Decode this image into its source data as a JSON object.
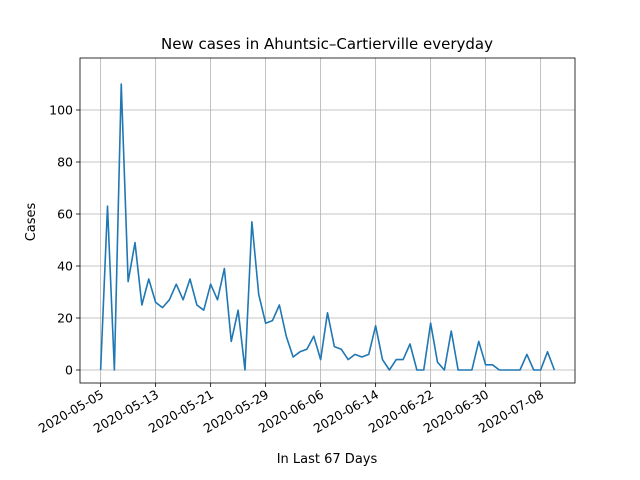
{
  "chart_data": {
    "type": "line",
    "title": "New cases in Ahuntsic–Cartierville everyday",
    "x_label": "In Last 67 Days",
    "y_label": "Cases",
    "x": [
      "2020-05-05",
      "2020-05-06",
      "2020-05-07",
      "2020-05-08",
      "2020-05-09",
      "2020-05-10",
      "2020-05-11",
      "2020-05-12",
      "2020-05-13",
      "2020-05-14",
      "2020-05-15",
      "2020-05-16",
      "2020-05-17",
      "2020-05-18",
      "2020-05-19",
      "2020-05-20",
      "2020-05-21",
      "2020-05-22",
      "2020-05-23",
      "2020-05-24",
      "2020-05-25",
      "2020-05-26",
      "2020-05-27",
      "2020-05-28",
      "2020-05-29",
      "2020-05-30",
      "2020-05-31",
      "2020-06-01",
      "2020-06-02",
      "2020-06-03",
      "2020-06-04",
      "2020-06-05",
      "2020-06-06",
      "2020-06-07",
      "2020-06-08",
      "2020-06-09",
      "2020-06-10",
      "2020-06-11",
      "2020-06-12",
      "2020-06-13",
      "2020-06-14",
      "2020-06-15",
      "2020-06-16",
      "2020-06-17",
      "2020-06-18",
      "2020-06-19",
      "2020-06-20",
      "2020-06-21",
      "2020-06-22",
      "2020-06-23",
      "2020-06-24",
      "2020-06-25",
      "2020-06-26",
      "2020-06-27",
      "2020-06-28",
      "2020-06-29",
      "2020-06-30",
      "2020-07-01",
      "2020-07-02",
      "2020-07-03",
      "2020-07-04",
      "2020-07-05",
      "2020-07-06",
      "2020-07-07",
      "2020-07-08",
      "2020-07-09",
      "2020-07-10"
    ],
    "values": [
      0,
      63,
      0,
      110,
      34,
      49,
      25,
      35,
      26,
      24,
      27,
      33,
      27,
      35,
      25,
      23,
      33,
      27,
      39,
      11,
      23,
      0,
      57,
      29,
      18,
      19,
      25,
      13,
      5,
      7,
      8,
      13,
      4,
      22,
      9,
      8,
      4,
      6,
      5,
      6,
      17,
      4,
      0,
      4,
      4,
      10,
      0,
      0,
      18,
      3,
      0,
      15,
      0,
      0,
      0,
      11,
      2,
      2,
      0,
      0,
      0,
      0,
      6,
      0,
      0,
      7,
      0
    ],
    "color": "#1f77b4",
    "xlim": [
      "2020-05-02",
      "2020-07-13"
    ],
    "xticks": [
      "2020-05-05",
      "2020-05-13",
      "2020-05-21",
      "2020-05-29",
      "2020-06-06",
      "2020-06-14",
      "2020-06-22",
      "2020-06-30",
      "2020-07-08"
    ],
    "ylim": [
      -5,
      120
    ],
    "yticks": [
      0,
      20,
      40,
      60,
      80,
      100
    ],
    "grid": true
  }
}
